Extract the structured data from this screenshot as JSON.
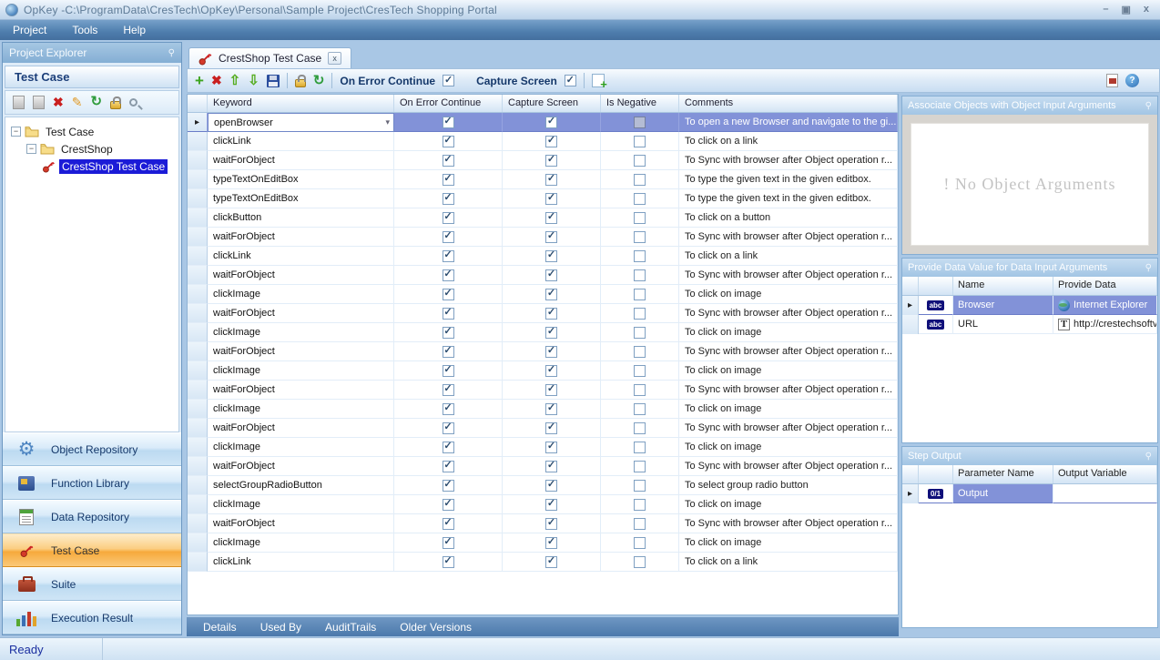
{
  "window": {
    "title": "OpKey -C:\\ProgramData\\CresTech\\OpKey\\Personal\\Sample Project\\CresTech Shopping Portal",
    "controls": [
      "minimize",
      "restore",
      "close"
    ],
    "status": "Ready"
  },
  "menu": {
    "items": [
      "Project",
      "Tools",
      "Help"
    ]
  },
  "explorer": {
    "title": "Project Explorer",
    "panel_title": "Test Case",
    "toolbar_icons": [
      "add-disabled-icon",
      "copy-disabled-icon",
      "delete-icon",
      "edit-icon",
      "refresh-icon",
      "lock-icon",
      "search-icon"
    ],
    "tree": [
      {
        "label": "Test Case",
        "level": 0,
        "icon": "folder-icon",
        "expanded": true,
        "selected": false
      },
      {
        "label": "CrestShop",
        "level": 1,
        "icon": "folder-icon",
        "expanded": true,
        "selected": false
      },
      {
        "label": "CrestShop Test Case",
        "level": 2,
        "icon": "key-icon",
        "expanded": null,
        "selected": true
      }
    ],
    "nav": [
      {
        "label": "Object Repository",
        "icon": "gear-icon",
        "active": false
      },
      {
        "label": "Function Library",
        "icon": "book-icon",
        "active": false
      },
      {
        "label": "Data Repository",
        "icon": "notepad-icon",
        "active": false
      },
      {
        "label": "Test Case",
        "icon": "key-icon",
        "active": true
      },
      {
        "label": "Suite",
        "icon": "briefcase-icon",
        "active": false
      },
      {
        "label": "Execution Result",
        "icon": "bar-chart-icon",
        "active": false
      }
    ]
  },
  "tab": {
    "title": "CrestShop Test Case",
    "icon": "key-icon",
    "close": "x"
  },
  "toolbar": {
    "on_error_label": "On Error Continue",
    "on_error_checked": true,
    "capture_label": "Capture Screen",
    "capture_checked": true,
    "icons": [
      "add-step-icon",
      "delete-step-icon",
      "move-up-icon",
      "move-down-icon",
      "save-icon",
      "lock-icon",
      "refresh-icon",
      "add-file-icon",
      "export-icon",
      "help-icon"
    ]
  },
  "grid": {
    "columns": [
      "Keyword",
      "On Error Continue",
      "Capture Screen",
      "Is Negative",
      "Comments"
    ],
    "rows": [
      {
        "keyword": "openBrowser",
        "on_error": true,
        "capture": true,
        "negative": false,
        "comment": "To open a new Browser and navigate to the gi...",
        "selected": true
      },
      {
        "keyword": "clickLink",
        "on_error": true,
        "capture": true,
        "negative": false,
        "comment": "To click on a link",
        "selected": false
      },
      {
        "keyword": "waitForObject",
        "on_error": true,
        "capture": true,
        "negative": false,
        "comment": "To Sync with browser after Object operation r...",
        "selected": false
      },
      {
        "keyword": "typeTextOnEditBox",
        "on_error": true,
        "capture": true,
        "negative": false,
        "comment": "To type the given text in the given editbox.",
        "selected": false
      },
      {
        "keyword": "typeTextOnEditBox",
        "on_error": true,
        "capture": true,
        "negative": false,
        "comment": "To type the given text in the given editbox.",
        "selected": false
      },
      {
        "keyword": "clickButton",
        "on_error": true,
        "capture": true,
        "negative": false,
        "comment": "To click on a button",
        "selected": false
      },
      {
        "keyword": "waitForObject",
        "on_error": true,
        "capture": true,
        "negative": false,
        "comment": "To Sync with browser after Object operation r...",
        "selected": false
      },
      {
        "keyword": "clickLink",
        "on_error": true,
        "capture": true,
        "negative": false,
        "comment": "To click on a link",
        "selected": false
      },
      {
        "keyword": "waitForObject",
        "on_error": true,
        "capture": true,
        "negative": false,
        "comment": "To Sync with browser after Object operation r...",
        "selected": false
      },
      {
        "keyword": "clickImage",
        "on_error": true,
        "capture": true,
        "negative": false,
        "comment": "To click on image",
        "selected": false
      },
      {
        "keyword": "waitForObject",
        "on_error": true,
        "capture": true,
        "negative": false,
        "comment": "To Sync with browser after Object operation r...",
        "selected": false
      },
      {
        "keyword": "clickImage",
        "on_error": true,
        "capture": true,
        "negative": false,
        "comment": "To click on image",
        "selected": false
      },
      {
        "keyword": "waitForObject",
        "on_error": true,
        "capture": true,
        "negative": false,
        "comment": "To Sync with browser after Object operation r...",
        "selected": false
      },
      {
        "keyword": "clickImage",
        "on_error": true,
        "capture": true,
        "negative": false,
        "comment": "To click on image",
        "selected": false
      },
      {
        "keyword": "waitForObject",
        "on_error": true,
        "capture": true,
        "negative": false,
        "comment": "To Sync with browser after Object operation r...",
        "selected": false
      },
      {
        "keyword": "clickImage",
        "on_error": true,
        "capture": true,
        "negative": false,
        "comment": "To click on image",
        "selected": false
      },
      {
        "keyword": "waitForObject",
        "on_error": true,
        "capture": true,
        "negative": false,
        "comment": "To Sync with browser after Object operation r...",
        "selected": false
      },
      {
        "keyword": "clickImage",
        "on_error": true,
        "capture": true,
        "negative": false,
        "comment": "To click on image",
        "selected": false
      },
      {
        "keyword": "waitForObject",
        "on_error": true,
        "capture": true,
        "negative": false,
        "comment": "To Sync with browser after Object operation r...",
        "selected": false
      },
      {
        "keyword": "selectGroupRadioButton",
        "on_error": true,
        "capture": true,
        "negative": false,
        "comment": "To select group radio button",
        "selected": false
      },
      {
        "keyword": "clickImage",
        "on_error": true,
        "capture": true,
        "negative": false,
        "comment": "To click on image",
        "selected": false
      },
      {
        "keyword": "waitForObject",
        "on_error": true,
        "capture": true,
        "negative": false,
        "comment": "To Sync with browser after Object operation r...",
        "selected": false
      },
      {
        "keyword": "clickImage",
        "on_error": true,
        "capture": true,
        "negative": false,
        "comment": "To click on image",
        "selected": false
      },
      {
        "keyword": "clickLink",
        "on_error": true,
        "capture": true,
        "negative": false,
        "comment": "To click on a link",
        "selected": false
      }
    ]
  },
  "panels": {
    "objects": {
      "title": "Associate Objects with Object Input Arguments",
      "empty_message": "! No Object Arguments"
    },
    "data": {
      "title": "Provide Data Value for Data Input Arguments",
      "columns": [
        "Name",
        "Provide Data"
      ],
      "rows": [
        {
          "badge": "abc",
          "name": "Browser",
          "value": "Internet Explorer",
          "value_icon": "globe-icon",
          "selected": true
        },
        {
          "badge": "abc",
          "name": "URL",
          "value": "http://crestechsoftv",
          "value_icon": "text-icon",
          "selected": false
        }
      ]
    },
    "output": {
      "title": "Step Output",
      "columns": [
        "Parameter Name",
        "Output Variable"
      ],
      "rows": [
        {
          "badge": "0/1",
          "name": "Output",
          "value": "",
          "selected": true
        }
      ]
    }
  },
  "bottom_tabs": [
    "Details",
    "Used By",
    "AuditTrails",
    "Older Versions"
  ],
  "colors": {
    "selection_blue": "#8292d8",
    "tree_selection": "#1b1bd7",
    "active_nav_orange": "#f6a93c",
    "menubar_blue": "#4e7dad"
  }
}
